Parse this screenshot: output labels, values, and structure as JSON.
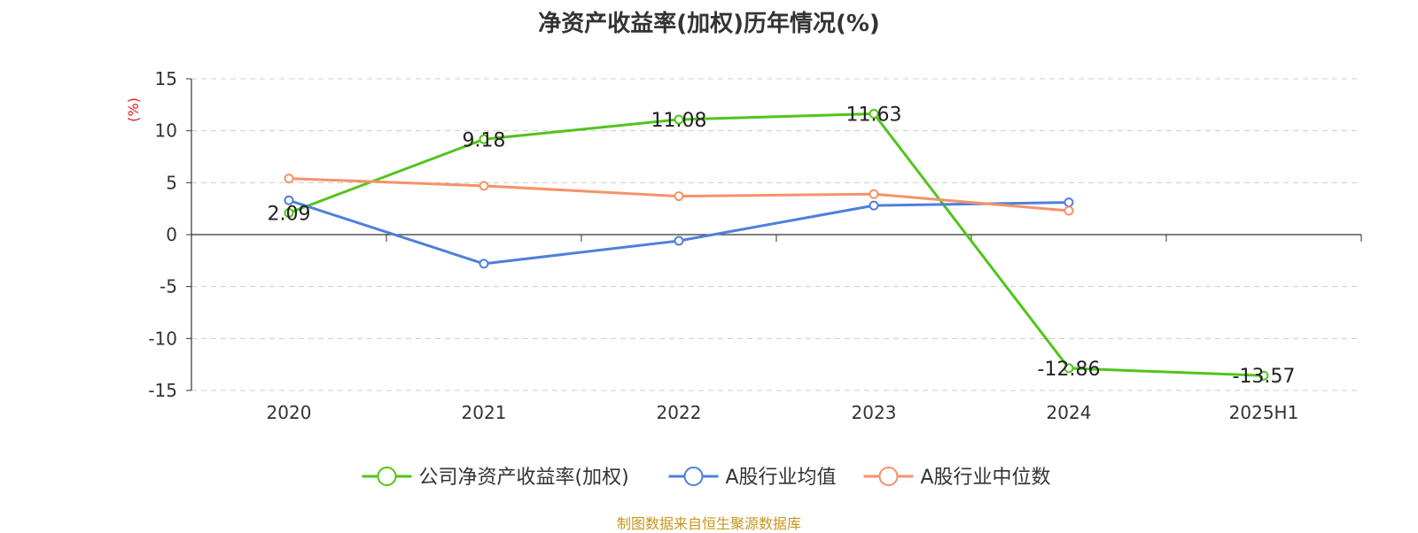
{
  "chart_data": {
    "type": "line",
    "title": "净资产收益率(加权)历年情况(%)",
    "ylabel": "(%)",
    "categories": [
      "2020",
      "2021",
      "2022",
      "2023",
      "2024",
      "2025H1"
    ],
    "ylim": [
      -15,
      15
    ],
    "yticks": [
      15,
      10,
      5,
      0,
      -5,
      -10,
      -15
    ],
    "grid": true,
    "legend_position": "bottom",
    "series": [
      {
        "name": "公司净资产收益率(加权)",
        "color": "#52c41a",
        "values": [
          2.09,
          9.18,
          11.08,
          11.63,
          -12.86,
          -13.57
        ],
        "show_labels": true
      },
      {
        "name": "A股行业均值",
        "color": "#4f7fdb",
        "values": [
          3.3,
          -2.8,
          -0.6,
          2.8,
          3.1,
          null
        ],
        "show_labels": false
      },
      {
        "name": "A股行业中位数",
        "color": "#f59268",
        "values": [
          5.4,
          4.7,
          3.7,
          3.9,
          2.3,
          null
        ],
        "show_labels": false
      }
    ],
    "data_labels": [
      "2.09",
      "9.18",
      "11.08",
      "11.63",
      "-12.86",
      "-13.57"
    ]
  },
  "source": "制图数据来自恒生聚源数据库"
}
